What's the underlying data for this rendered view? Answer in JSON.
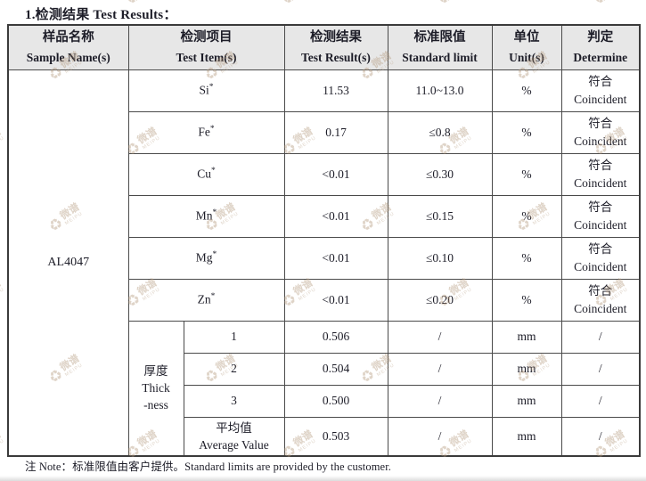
{
  "title": "1.检测结果 Test Results：",
  "note": "注 Note：标准限值由客户提供。Standard limits are provided by the customer.",
  "watermark": {
    "icon": "♻",
    "cn": "微谱",
    "en": "MEIPU"
  },
  "table": {
    "headers": [
      {
        "cn": "样品名称",
        "en": "Sample Name(s)"
      },
      {
        "cn": "检测项目",
        "en": "Test Item(s)"
      },
      {
        "cn": "检测结果",
        "en": "Test Result(s)"
      },
      {
        "cn": "标准限值",
        "en": "Standard limit"
      },
      {
        "cn": "单位",
        "en": "Unit(s)"
      },
      {
        "cn": "判定",
        "en": "Determine"
      }
    ],
    "sample_name": "AL4047",
    "element_rows": [
      {
        "item": "Si",
        "sup": "*",
        "result": "11.53",
        "limit": "11.0~13.0",
        "unit": "%",
        "det_cn": "符合",
        "det_en": "Coincident"
      },
      {
        "item": "Fe",
        "sup": "*",
        "result": "0.17",
        "limit": "≤0.8",
        "unit": "%",
        "det_cn": "符合",
        "det_en": "Coincident"
      },
      {
        "item": "Cu",
        "sup": "*",
        "result": "<0.01",
        "limit": "≤0.30",
        "unit": "%",
        "det_cn": "符合",
        "det_en": "Coincident"
      },
      {
        "item": "Mn",
        "sup": "*",
        "result": "<0.01",
        "limit": "≤0.15",
        "unit": "%",
        "det_cn": "符合",
        "det_en": "Coincident"
      },
      {
        "item": "Mg",
        "sup": "*",
        "result": "<0.01",
        "limit": "≤0.10",
        "unit": "%",
        "det_cn": "符合",
        "det_en": "Coincident"
      },
      {
        "item": "Zn",
        "sup": "*",
        "result": "<0.01",
        "limit": "≤0.20",
        "unit": "%",
        "det_cn": "符合",
        "det_en": "Coincident"
      }
    ],
    "thickness": {
      "label_cn": "厚度",
      "label_en_1": "Thick",
      "label_en_2": "-ness",
      "rows": [
        {
          "item": "1",
          "result": "0.506",
          "limit": "/",
          "unit": "mm",
          "det": "/"
        },
        {
          "item": "2",
          "result": "0.504",
          "limit": "/",
          "unit": "mm",
          "det": "/"
        },
        {
          "item": "3",
          "result": "0.500",
          "limit": "/",
          "unit": "mm",
          "det": "/"
        }
      ],
      "avg_row": {
        "item_cn": "平均值",
        "item_en": "Average Value",
        "result": "0.503",
        "limit": "/",
        "unit": "mm",
        "det": "/"
      }
    }
  }
}
